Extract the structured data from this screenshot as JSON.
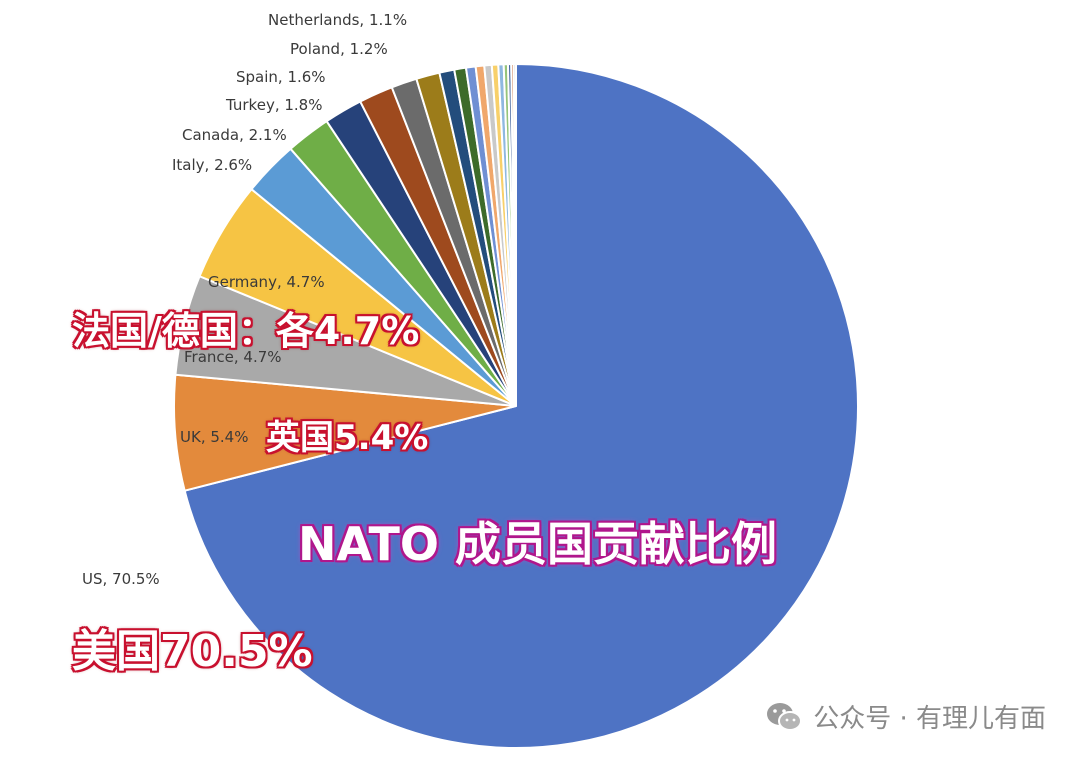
{
  "chart_data": {
    "type": "pie",
    "slices": [
      {
        "label": "US, 70.5%",
        "value": 70.5,
        "color": "#4e73c4"
      },
      {
        "label": "UK, 5.4%",
        "value": 5.4,
        "color": "#e38a3c"
      },
      {
        "label": "France, 4.7%",
        "value": 4.7,
        "color": "#a9a9a9"
      },
      {
        "label": "Germany, 4.7%",
        "value": 4.7,
        "color": "#f6c444"
      },
      {
        "label": "Italy, 2.6%",
        "value": 2.6,
        "color": "#5b9bd5"
      },
      {
        "label": "Canada, 2.1%",
        "value": 2.1,
        "color": "#6fae47"
      },
      {
        "label": "Turkey, 1.8%",
        "value": 1.8,
        "color": "#26427a"
      },
      {
        "label": "Spain, 1.6%",
        "value": 1.6,
        "color": "#9e4a1e"
      },
      {
        "label": "Poland, 1.2%",
        "value": 1.2,
        "color": "#6b6b6b"
      },
      {
        "label": "Netherlands, 1.1%",
        "value": 1.1,
        "color": "#9c7c1a"
      },
      {
        "label": "",
        "value": 0.7,
        "color": "#234d7c"
      },
      {
        "label": "",
        "value": 0.55,
        "color": "#3d6b2a"
      },
      {
        "label": "",
        "value": 0.45,
        "color": "#6f8fd3"
      },
      {
        "label": "",
        "value": 0.4,
        "color": "#f0a76b"
      },
      {
        "label": "",
        "value": 0.35,
        "color": "#c9c9c9"
      },
      {
        "label": "",
        "value": 0.3,
        "color": "#f8d06a"
      },
      {
        "label": "",
        "value": 0.25,
        "color": "#8fb8e0"
      },
      {
        "label": "",
        "value": 0.2,
        "color": "#96c47a"
      },
      {
        "label": "",
        "value": 0.15,
        "color": "#3e5f9c"
      },
      {
        "label": "",
        "value": 0.12,
        "color": "#c46a3a"
      },
      {
        "label": "",
        "value": 0.1,
        "color": "#8a8a8a"
      }
    ]
  },
  "overlays": {
    "france_germany": "法国/德国：各4.7%",
    "uk": "英国5.4%",
    "title": "NATO 成员国贡献比例",
    "us": "美国70.5%"
  },
  "watermark": {
    "text": "公众号 · 有理儿有面",
    "icon": "wechat-icon"
  }
}
